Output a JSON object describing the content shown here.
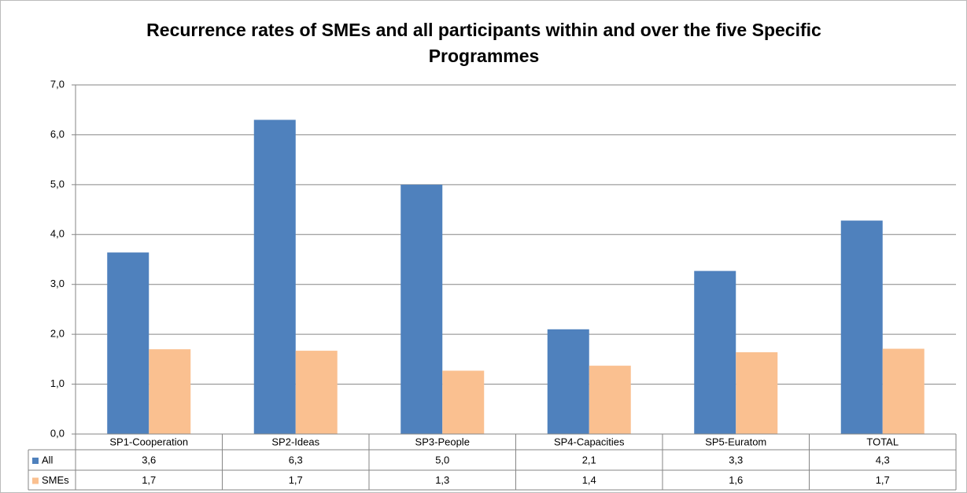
{
  "chart_data": {
    "type": "bar",
    "title": [
      "Recurrence rates of SMEs and all participants within and over the five Specific",
      "Programmes"
    ],
    "categories": [
      "SP1-Cooperation",
      "SP2-Ideas",
      "SP3-People",
      "SP4-Capacities",
      "SP5-Euratom",
      "TOTAL"
    ],
    "series": [
      {
        "name": "All",
        "color": "#4f81bd",
        "values": [
          3.64,
          6.3,
          5.0,
          2.1,
          3.27,
          4.28
        ],
        "value_labels": [
          "3,6",
          "6,3",
          "5,0",
          "2,1",
          "3,3",
          "4,3"
        ]
      },
      {
        "name": "SMEs",
        "color": "#fac090",
        "values": [
          1.7,
          1.67,
          1.27,
          1.37,
          1.64,
          1.71
        ],
        "value_labels": [
          "1,7",
          "1,7",
          "1,3",
          "1,4",
          "1,6",
          "1,7"
        ]
      }
    ],
    "ylim": [
      0,
      7
    ],
    "yticks": [
      {
        "value": 0,
        "label": "0,0"
      },
      {
        "value": 1,
        "label": "1,0"
      },
      {
        "value": 2,
        "label": "2,0"
      },
      {
        "value": 3,
        "label": "3,0"
      },
      {
        "value": 4,
        "label": "4,0"
      },
      {
        "value": 5,
        "label": "5,0"
      },
      {
        "value": 6,
        "label": "6,0"
      },
      {
        "value": 7,
        "label": "7,0"
      }
    ],
    "grid": true
  }
}
